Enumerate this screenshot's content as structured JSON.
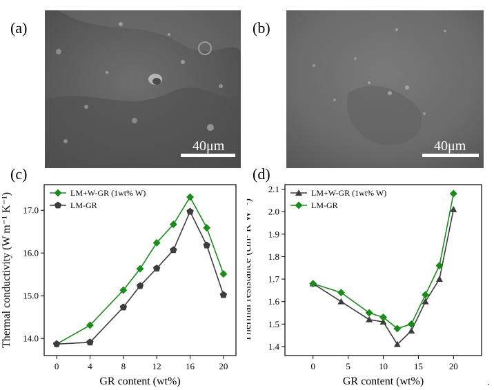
{
  "panels": {
    "a": {
      "letter": "(a)",
      "scale_label": "40μm"
    },
    "b": {
      "letter": "(b)",
      "scale_label": "40μm"
    },
    "c": {
      "letter": "(c)"
    },
    "d": {
      "letter": "(d)"
    }
  },
  "trailing_mark": ".",
  "chart_data": [
    {
      "type": "line",
      "panel": "c",
      "xlabel": "GR content (wt%)",
      "ylabel": "Thermal conductivity (W m⁻¹ K⁻¹)",
      "xlim": [
        -1.5,
        21.5
      ],
      "ylim": [
        13.6,
        17.6
      ],
      "xticks": [
        0,
        4,
        8,
        12,
        16,
        20
      ],
      "yticks": [
        14.0,
        15.0,
        16.0,
        17.0
      ],
      "ytick_labels": [
        "14.0",
        "15.0",
        "16.0",
        "17.0"
      ],
      "legend_position": "top-left",
      "series": [
        {
          "name": "LM+W-GR (1wt% W)",
          "color": "#1a8c1a",
          "marker": "diamond",
          "x": [
            0,
            4,
            8,
            10,
            12,
            14,
            16,
            18,
            20
          ],
          "y": [
            13.87,
            14.31,
            15.13,
            15.63,
            16.24,
            16.67,
            17.31,
            16.59,
            15.51
          ]
        },
        {
          "name": "LM-GR",
          "color": "#3c3c3c",
          "marker": "pentagon",
          "x": [
            0,
            4,
            8,
            10,
            12,
            14,
            16,
            18,
            20
          ],
          "y": [
            13.87,
            13.91,
            14.73,
            15.23,
            15.64,
            16.07,
            16.97,
            16.18,
            15.02
          ]
        }
      ]
    },
    {
      "type": "line",
      "panel": "d",
      "xlabel": "GR content (wt%)",
      "ylabel": "Thermal resistance (cm² K W⁻¹)",
      "xlim": [
        -4,
        24
      ],
      "ylim": [
        1.36,
        2.12
      ],
      "xticks": [
        0,
        5,
        10,
        15,
        20
      ],
      "yticks": [
        1.4,
        1.5,
        1.6,
        1.7,
        1.8,
        1.9,
        2.0,
        2.1
      ],
      "ytick_labels": [
        "1.4",
        "1.5",
        "1.6",
        "1.7",
        "1.8",
        "1.9",
        "2.0",
        "2.1"
      ],
      "legend_position": "top-left",
      "series": [
        {
          "name": "LM+W-GR (1wt% W)",
          "color": "#3c3c3c",
          "marker": "triangle",
          "x": [
            0,
            4,
            8,
            10,
            12,
            14,
            16,
            18,
            20
          ],
          "y": [
            1.68,
            1.6,
            1.52,
            1.51,
            1.41,
            1.47,
            1.6,
            1.7,
            2.01
          ]
        },
        {
          "name": "LM-GR",
          "color": "#1a8c1a",
          "marker": "diamond",
          "x": [
            0,
            4,
            8,
            10,
            12,
            14,
            16,
            18,
            20
          ],
          "y": [
            1.68,
            1.64,
            1.55,
            1.53,
            1.48,
            1.5,
            1.63,
            1.76,
            2.08
          ]
        }
      ]
    }
  ]
}
